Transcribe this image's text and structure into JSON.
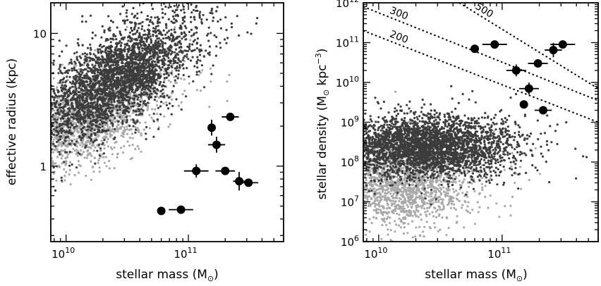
{
  "chart_data": [
    {
      "type": "scatter",
      "x_scale": "log",
      "y_scale": "log",
      "xlim": [
        7500000000.0,
        600000000000.0
      ],
      "ylim": [
        0.27,
        17
      ],
      "xlabel_main": "stellar mass (M",
      "xlabel_sub": "⊙",
      "xlabel_end": ")",
      "ylabel": "effective radius (kpc)",
      "x_ticks": [
        {
          "value": 10000000000.0,
          "base": "10",
          "exp": "10"
        },
        {
          "value": 100000000000.0,
          "base": "10",
          "exp": "11"
        }
      ],
      "y_ticks": [
        {
          "value": 1,
          "label": "1"
        },
        {
          "value": 10,
          "label": "10"
        }
      ],
      "background_clouds": [
        {
          "name": "light grey galaxies",
          "color": "#a9a9a9",
          "count": 1800,
          "mass_log_mean": 10.2,
          "mass_log_sd": 0.28,
          "value_log_intercept": 0.28,
          "value_log_slope": 0.42,
          "value_log_sd": 0.17
        },
        {
          "name": "dark grey galaxies",
          "color": "#3c3c3c",
          "count": 3200,
          "mass_log_mean": 10.4,
          "mass_log_sd": 0.33,
          "value_log_intercept": 0.45,
          "value_log_slope": 0.5,
          "value_log_sd": 0.18
        }
      ],
      "points": [
        {
          "x": 60000000000.0,
          "y": 0.46,
          "xerr_lo": 0.0,
          "xerr_hi": 0.0,
          "yerr": 0.0
        },
        {
          "x": 87000000000.0,
          "y": 0.47,
          "xerr_lo": 0.1,
          "xerr_hi": 0.1,
          "yerr": 0.0
        },
        {
          "x": 116000000000.0,
          "y": 0.92,
          "xerr_lo": 0.1,
          "xerr_hi": 0.1,
          "yerr": 0.05
        },
        {
          "x": 155000000000.0,
          "y": 1.95,
          "xerr_lo": 0.0,
          "xerr_hi": 0.0,
          "yerr": 0.06
        },
        {
          "x": 170000000000.0,
          "y": 1.45,
          "xerr_lo": 0.07,
          "xerr_hi": 0.07,
          "yerr": 0.06
        },
        {
          "x": 200000000000.0,
          "y": 0.92,
          "xerr_lo": 0.08,
          "xerr_hi": 0.08,
          "yerr": 0.0
        },
        {
          "x": 220000000000.0,
          "y": 2.35,
          "xerr_lo": 0.07,
          "xerr_hi": 0.07,
          "yerr": 0.0
        },
        {
          "x": 260000000000.0,
          "y": 0.77,
          "xerr_lo": 0.05,
          "xerr_hi": 0.05,
          "yerr": 0.07
        },
        {
          "x": 310000000000.0,
          "y": 0.75,
          "xerr_lo": 0.08,
          "xerr_hi": 0.08,
          "yerr": 0.0
        }
      ]
    },
    {
      "type": "scatter",
      "x_scale": "log",
      "y_scale": "log",
      "xlim": [
        7500000000.0,
        600000000000.0
      ],
      "ylim": [
        1000000.0,
        1000000000000.0
      ],
      "xlabel_main": "stellar mass (M",
      "xlabel_sub": "⊙",
      "xlabel_end": ")",
      "ylabel_main": "stellar density (M",
      "ylabel_sub": "⊙",
      "ylabel_mid": " kpc",
      "ylabel_sup": "−3",
      "ylabel_end": ")",
      "x_ticks": [
        {
          "value": 10000000000.0,
          "base": "10",
          "exp": "10"
        },
        {
          "value": 100000000000.0,
          "base": "10",
          "exp": "11"
        }
      ],
      "y_ticks": [
        {
          "value": 1000000.0,
          "base": "10",
          "exp": "6"
        },
        {
          "value": 10000000.0,
          "base": "10",
          "exp": "7"
        },
        {
          "value": 100000000.0,
          "base": "10",
          "exp": "8"
        },
        {
          "value": 1000000000.0,
          "base": "10",
          "exp": "9"
        },
        {
          "value": 10000000000.0,
          "base": "10",
          "exp": "10"
        },
        {
          "value": 100000000000.0,
          "base": "10",
          "exp": "11"
        },
        {
          "value": 1000000000000.0,
          "base": "10",
          "exp": "12"
        }
      ],
      "contours": [
        {
          "label": "200",
          "x_start": 7500000000.0,
          "y_start": 200000000000.0,
          "x_end": 600000000000.0,
          "y_end": 1000000000.0
        },
        {
          "label": "300",
          "x_start": 7500000000.0,
          "y_start": 800000000000.0,
          "x_end": 600000000000.0,
          "y_end": 3500000000.0
        },
        {
          "label": "500",
          "x_start": 45000000000.0,
          "y_start": 1000000000000.0,
          "x_end": 600000000000.0,
          "y_end": 7000000000.0
        }
      ],
      "background_clouds": [
        {
          "name": "light grey galaxies",
          "color": "#a9a9a9",
          "count": 1800,
          "mass_log_mean": 10.2,
          "mass_log_sd": 0.28,
          "value_log_intercept": 7.4,
          "value_log_slope": 0.2,
          "value_log_sd": 0.55
        },
        {
          "name": "dark grey galaxies",
          "color": "#3c3c3c",
          "count": 3200,
          "mass_log_mean": 10.4,
          "mass_log_sd": 0.33,
          "value_log_intercept": 8.4,
          "value_log_slope": 0.0,
          "value_log_sd": 0.4
        }
      ],
      "points": [
        {
          "x": 60000000000.0,
          "y": 70000000000.0,
          "xerr_lo": 0.0,
          "xerr_hi": 0.0,
          "yerr": 0.0
        },
        {
          "x": 87000000000.0,
          "y": 90000000000.0,
          "xerr_lo": 0.1,
          "xerr_hi": 0.1,
          "yerr": 0.0
        },
        {
          "x": 130000000000.0,
          "y": 20000000000.0,
          "xerr_lo": 0.08,
          "xerr_hi": 0.08,
          "yerr": 0.15
        },
        {
          "x": 150000000000.0,
          "y": 2800000000.0,
          "xerr_lo": 0.0,
          "xerr_hi": 0.0,
          "yerr": 0.0
        },
        {
          "x": 165000000000.0,
          "y": 7000000000.0,
          "xerr_lo": 0.08,
          "xerr_hi": 0.08,
          "yerr": 0.15
        },
        {
          "x": 195000000000.0,
          "y": 30000000000.0,
          "xerr_lo": 0.08,
          "xerr_hi": 0.08,
          "yerr": 0.0
        },
        {
          "x": 215000000000.0,
          "y": 2000000000.0,
          "xerr_lo": 0.07,
          "xerr_hi": 0.07,
          "yerr": 0.0
        },
        {
          "x": 260000000000.0,
          "y": 65000000000.0,
          "xerr_lo": 0.07,
          "xerr_hi": 0.07,
          "yerr": 0.18
        },
        {
          "x": 310000000000.0,
          "y": 90000000000.0,
          "xerr_lo": 0.1,
          "xerr_hi": 0.1,
          "yerr": 0.0
        }
      ]
    }
  ]
}
